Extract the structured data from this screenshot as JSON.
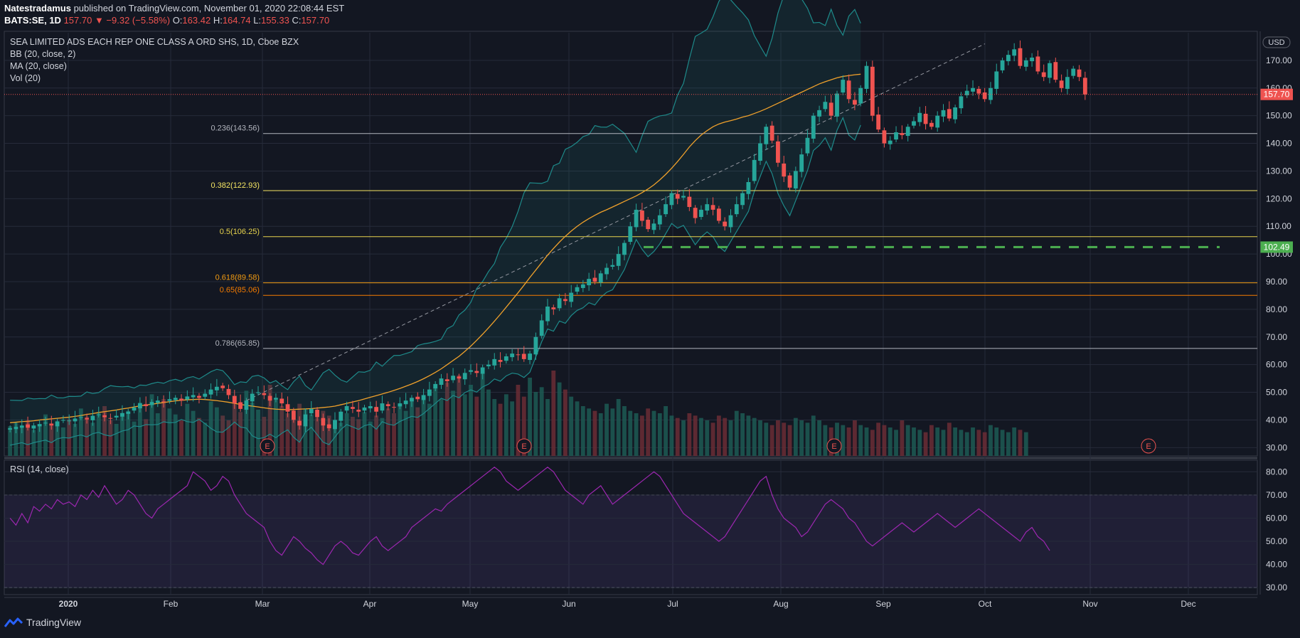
{
  "header": {
    "author": "Natestradamus",
    "published_text": "published on TradingView.com, November 01, 2020 22:08:44 EST",
    "symbol": "BATS:SE, 1D",
    "last": "157.70",
    "change": "▼ −9.32 (−5.58%)",
    "o_label": "O:",
    "o": "163.42",
    "h_label": "H:",
    "h": "164.74",
    "l_label": "L:",
    "l": "155.33",
    "c_label": "C:",
    "c": "157.70"
  },
  "legend": {
    "title": "SEA LIMITED ADS EACH REP ONE CLASS A ORD SHS, 1D, Cboe BZX",
    "bb": "BB (20, close, 2)",
    "ma": "MA (20, close)",
    "vol": "Vol (20)",
    "rsi": "RSI (14, close)"
  },
  "footer": {
    "brand": "TradingView"
  },
  "colors": {
    "background": "#131722",
    "grid": "#262b3a",
    "up": "#26a69a",
    "down": "#ef5350",
    "ma": "#f0a12b",
    "bb": "#1e8a8a",
    "rsi": "#9c27b0",
    "dashed_support": "#4caf50"
  },
  "chart_data": [
    {
      "type": "candlestick",
      "title": "SEA LIMITED ADS EACH REP ONE CLASS A ORD SHS, 1D, Cboe BZX",
      "currency": "USD",
      "ylim": [
        27,
        180
      ],
      "y_ticks": [
        "30.00",
        "40.00",
        "50.00",
        "60.00",
        "70.00",
        "80.00",
        "90.00",
        "100.00",
        "110.00",
        "120.00",
        "130.00",
        "140.00",
        "150.00",
        "160.00",
        "170.00"
      ],
      "x_labels": [
        "2020",
        "Feb",
        "Mar",
        "Apr",
        "May",
        "Jun",
        "Jul",
        "Aug",
        "Sep",
        "Oct",
        "Nov",
        "Dec"
      ],
      "last_price": {
        "value": 157.7,
        "label": "157.70"
      },
      "support_line": {
        "value": 102.49,
        "label": "102.49"
      },
      "fib_levels": [
        {
          "level": 0.236,
          "value": 143.56,
          "label": "0.236(143.56)",
          "color": "#b2b5be"
        },
        {
          "level": 0.382,
          "value": 122.93,
          "label": "0.382(122.93)",
          "color": "#f5e663"
        },
        {
          "level": 0.5,
          "value": 106.25,
          "label": "0.5(106.25)",
          "color": "#e8d44d"
        },
        {
          "level": 0.618,
          "value": 89.58,
          "label": "0.618(89.58)",
          "color": "#f39c12"
        },
        {
          "level": 0.65,
          "value": 85.06,
          "label": "0.65(85.06)",
          "color": "#f57c00"
        },
        {
          "level": 0.786,
          "value": 65.85,
          "label": "0.786(65.85)",
          "color": "#b2b5be"
        }
      ],
      "earnings_markers": [
        "E",
        "E",
        "E",
        "E"
      ],
      "closes": [
        37,
        37.5,
        38,
        37.2,
        38,
        38.5,
        39,
        38,
        39.5,
        40,
        39.8,
        40.5,
        41,
        40.2,
        41.5,
        42,
        41,
        40.5,
        41.5,
        42.5,
        43,
        44.5,
        46,
        45,
        46.5,
        47,
        46.5,
        47.5,
        48,
        47,
        48.5,
        49,
        48,
        49.5,
        51,
        52,
        51.5,
        49,
        46,
        44,
        47,
        49.5,
        50,
        49,
        47,
        48,
        46,
        43,
        40,
        38,
        42,
        44,
        41,
        38,
        37,
        40,
        43,
        45,
        44,
        43,
        44.5,
        45,
        43,
        46,
        45,
        44.5,
        46,
        47,
        48,
        47.5,
        49,
        51,
        53,
        55,
        54,
        56,
        55,
        57,
        58,
        57,
        59,
        60,
        62,
        61,
        63,
        64,
        63.5,
        62,
        64,
        70,
        76,
        81,
        80,
        84,
        83,
        86,
        88,
        89,
        91,
        90,
        93,
        95,
        96,
        100,
        104,
        110,
        116,
        112,
        109,
        111,
        114,
        118,
        122,
        120,
        121,
        117,
        113,
        116,
        118,
        116,
        112,
        110,
        114,
        118,
        122,
        126,
        134,
        140,
        146,
        141,
        133,
        128,
        124,
        130,
        136,
        142,
        150,
        152,
        155,
        150,
        158,
        163,
        156,
        154,
        160,
        168,
        150,
        145,
        140,
        141,
        144,
        143,
        146,
        148,
        151,
        147,
        146,
        150,
        152,
        149,
        153,
        157,
        159,
        160,
        158,
        156,
        160,
        166,
        170,
        172,
        174,
        168,
        170,
        171,
        166,
        164,
        169,
        163,
        160,
        164,
        167,
        164,
        157.7
      ],
      "ma20": [
        39,
        39.2,
        39.4,
        39.5,
        39.7,
        40,
        40.2,
        40.4,
        40.6,
        40.8,
        41,
        41.3,
        41.6,
        42,
        42.3,
        42.7,
        43,
        43.3,
        43.6,
        44,
        44.3,
        44.7,
        45.1,
        45.4,
        45.7,
        46,
        46.3,
        46.6,
        46.9,
        47.1,
        47.3,
        47.4,
        47.5,
        47.4,
        47.2,
        47,
        46.7,
        46.4,
        46,
        45.6,
        45.3,
        45,
        44.7,
        44.4,
        44.1,
        43.9,
        43.8,
        43.7,
        43.8,
        43.9,
        44,
        44.1,
        44.3,
        44.5,
        44.7,
        45,
        45.5,
        46,
        46.5,
        47,
        47.6,
        48.2,
        48.8,
        49.4,
        50,
        50.7,
        51.4,
        52.2,
        53,
        53.9,
        54.9,
        56,
        57.2,
        58.5,
        60,
        61.5,
        63,
        64.8,
        66.7,
        68.8,
        71,
        73.3,
        75.7,
        78.2,
        80.8,
        83.4,
        86,
        88.7,
        91.5,
        94.2,
        96.9,
        99.6,
        102,
        104.3,
        106.4,
        108.3,
        110,
        111.5,
        112.8,
        114,
        115.1,
        116,
        117,
        118,
        119,
        120,
        121,
        122.2,
        123.5,
        125,
        126.8,
        128.8,
        131,
        133.4,
        136,
        138.7,
        141,
        143,
        144.6,
        146,
        147,
        147.7,
        148.2,
        148.8,
        149.5,
        150,
        150.8,
        151.6,
        152.5,
        153.5,
        154.5,
        155.5,
        156.5,
        157.5,
        158.5,
        159.5,
        160.5,
        161.5,
        162.3,
        163,
        163.7,
        164.2,
        164.5,
        164.8,
        165
      ],
      "volume": [
        25,
        28,
        24,
        30,
        22,
        27,
        35,
        26,
        29,
        24,
        31,
        27,
        40,
        33,
        28,
        36,
        42,
        30,
        27,
        34,
        38,
        29,
        45,
        31,
        52,
        36,
        48,
        40,
        35,
        30,
        44,
        38,
        32,
        28,
        46,
        41,
        34,
        30,
        50,
        37,
        55,
        45,
        39,
        33,
        60,
        48,
        42,
        36,
        30,
        44,
        40,
        35,
        32,
        38,
        34,
        30,
        28,
        36,
        33,
        31,
        37,
        29,
        34,
        32,
        40,
        36,
        42,
        38,
        46,
        41,
        50,
        44,
        58,
        48,
        62,
        55,
        68,
        52,
        60,
        50,
        70,
        56,
        48,
        44,
        52,
        46,
        60,
        50,
        66,
        54,
        58,
        48,
        72,
        62,
        56,
        50,
        46,
        42,
        40,
        38,
        36,
        44,
        40,
        48,
        42,
        38,
        36,
        34,
        40,
        38,
        36,
        42,
        34,
        32,
        30,
        36,
        34,
        32,
        30,
        28,
        34,
        32,
        30,
        38,
        36,
        34,
        32,
        30,
        28,
        26,
        30,
        28,
        26,
        32,
        30,
        28,
        34,
        30,
        26,
        24,
        28,
        26,
        24,
        30,
        26,
        24,
        22,
        28,
        26,
        24,
        22,
        30,
        26,
        24,
        22,
        20,
        26,
        24,
        22,
        28,
        24,
        22,
        20,
        24,
        22,
        20,
        26,
        24,
        22,
        20,
        24,
        22,
        20
      ],
      "rsi": {
        "ylim": [
          27,
          85
        ],
        "y_ticks": [
          "30.00",
          "40.00",
          "50.00",
          "60.00",
          "70.00",
          "80.00"
        ],
        "band": [
          30,
          70
        ],
        "values": [
          60,
          57,
          62,
          58,
          65,
          63,
          66,
          64,
          68,
          66,
          67,
          65,
          70,
          68,
          72,
          69,
          74,
          70,
          66,
          68,
          72,
          70,
          66,
          62,
          60,
          64,
          66,
          68,
          70,
          72,
          74,
          80,
          78,
          76,
          72,
          74,
          78,
          76,
          70,
          66,
          62,
          60,
          58,
          56,
          50,
          46,
          44,
          48,
          52,
          50,
          47,
          45,
          42,
          40,
          44,
          48,
          50,
          48,
          45,
          44,
          47,
          50,
          52,
          48,
          46,
          48,
          50,
          52,
          56,
          58,
          60,
          62,
          64,
          63,
          66,
          68,
          70,
          72,
          74,
          76,
          78,
          80,
          82,
          80,
          76,
          74,
          72,
          74,
          76,
          78,
          80,
          82,
          80,
          76,
          72,
          70,
          68,
          66,
          70,
          72,
          74,
          70,
          66,
          68,
          70,
          72,
          74,
          76,
          78,
          80,
          78,
          74,
          70,
          66,
          62,
          60,
          58,
          56,
          54,
          52,
          50,
          52,
          56,
          60,
          64,
          68,
          72,
          76,
          78,
          70,
          64,
          60,
          58,
          56,
          52,
          54,
          58,
          62,
          66,
          68,
          66,
          64,
          60,
          58,
          54,
          50,
          48,
          50,
          52,
          54,
          56,
          58,
          56,
          54,
          56,
          58,
          60,
          62,
          60,
          58,
          56,
          58,
          60,
          62,
          64,
          62,
          60,
          58,
          56,
          54,
          52,
          50,
          54,
          56,
          52,
          50,
          46
        ]
      }
    }
  ]
}
